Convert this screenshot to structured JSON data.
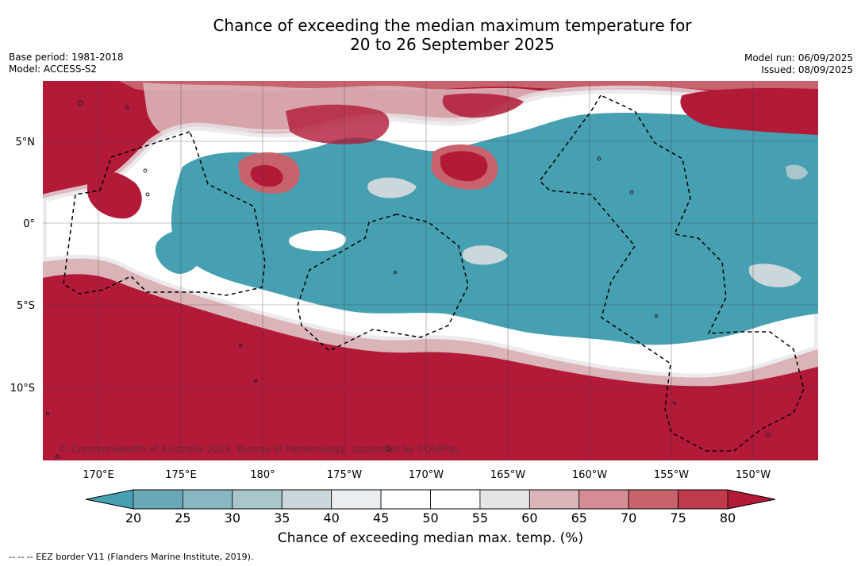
{
  "title": {
    "line1": "Chance of exceeding the median maximum temperature for",
    "line2": "20 to 26 September 2025"
  },
  "meta_left": {
    "base_period": "Base period: 1981-2018",
    "model": "Model: ACCESS-S2"
  },
  "meta_right": {
    "model_run": "Model run: 06/09/2025",
    "issued": "Issued: 08/09/2025"
  },
  "map": {
    "lat_labels": [
      "5°N",
      "0°",
      "5°S",
      "10°S"
    ],
    "lon_labels": [
      "170°E",
      "175°E",
      "180°",
      "175°W",
      "170°W",
      "165°W",
      "160°W",
      "155°W",
      "150°W"
    ],
    "copyright": "© Commonwealth of Australia 2025, Bureau of Meteorology, supported by COSPPac",
    "colors": {
      "warm": "#b21a38",
      "cool": "#46a0b2",
      "neutral": "#ffffff"
    }
  },
  "colorbar": {
    "ticks": [
      "20",
      "25",
      "30",
      "35",
      "40",
      "45",
      "50",
      "55",
      "60",
      "65",
      "70",
      "75",
      "80"
    ],
    "colors": [
      "#68a8b6",
      "#88b7c3",
      "#a8c6cc",
      "#cbd7da",
      "#eaeef0",
      "#ffffff",
      "#ffffff",
      "#e8e5e6",
      "#dbb4b9",
      "#d58d95",
      "#c8636d",
      "#bf3b4b"
    ],
    "under_color": "#46a0b2",
    "over_color": "#b21a38",
    "label": "Chance of exceeding median max. temp. (%)"
  },
  "footnote": "--  --  -- EEZ border V11 (Flanders Marine Institute, 2019)."
}
